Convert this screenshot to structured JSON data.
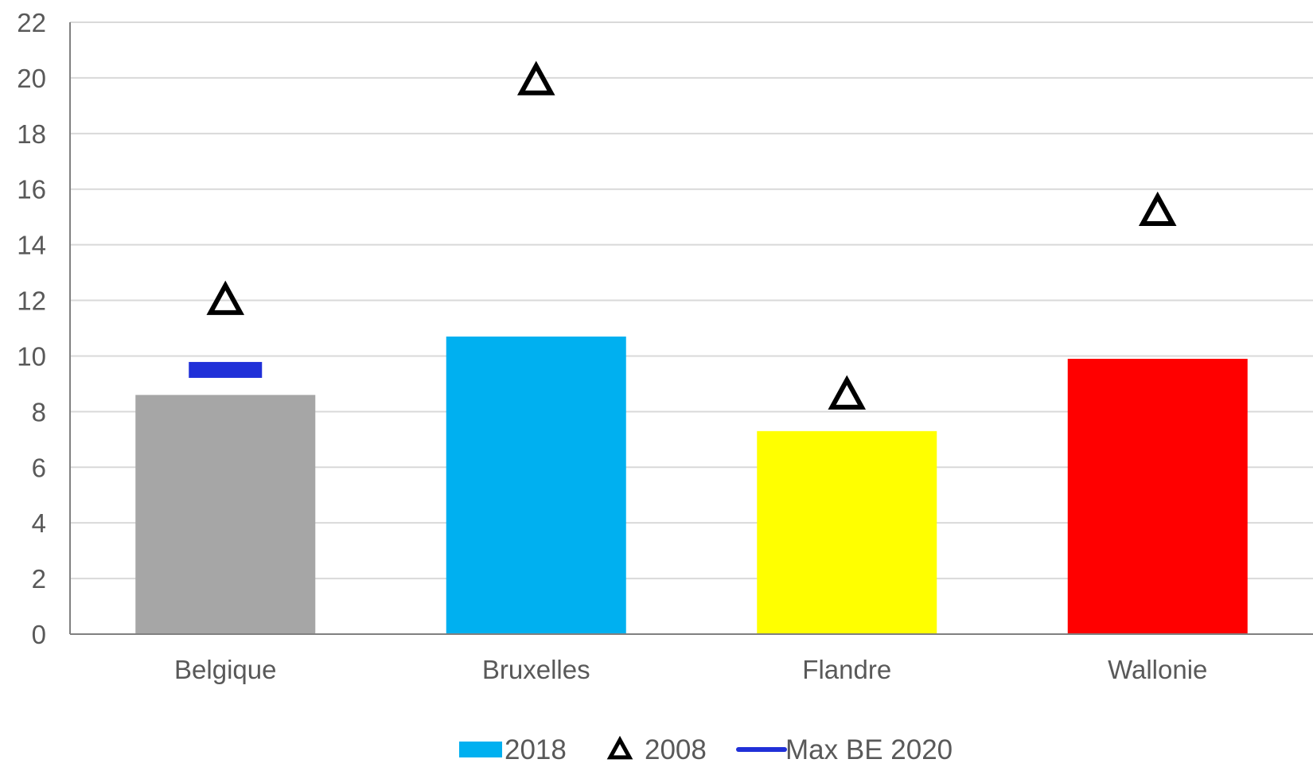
{
  "chart_data": {
    "type": "bar",
    "categories": [
      "Belgique",
      "Bruxelles",
      "Flandre",
      "Wallonie"
    ],
    "series": [
      {
        "name": "2018",
        "kind": "bar",
        "values": [
          8.6,
          10.7,
          7.3,
          9.9
        ],
        "colors": [
          "#a6a6a6",
          "#00b0f0",
          "#ffff00",
          "#ff0000"
        ],
        "legend_color": "#00b0f0"
      },
      {
        "name": "2008",
        "kind": "triangle-marker",
        "values": [
          12.0,
          19.9,
          8.6,
          15.2
        ],
        "color": "#000000"
      },
      {
        "name": "Max BE 2020",
        "kind": "dash-marker",
        "values": [
          9.5,
          null,
          null,
          null
        ],
        "color": "#2030d8"
      }
    ],
    "ylim": [
      0,
      22
    ],
    "yticks": [
      "0",
      "2",
      "4",
      "6",
      "8",
      "10",
      "12",
      "14",
      "16",
      "18",
      "20",
      "22"
    ],
    "grid": true,
    "legend": "bottom-center",
    "title": "",
    "xlabel": "",
    "ylabel": ""
  }
}
